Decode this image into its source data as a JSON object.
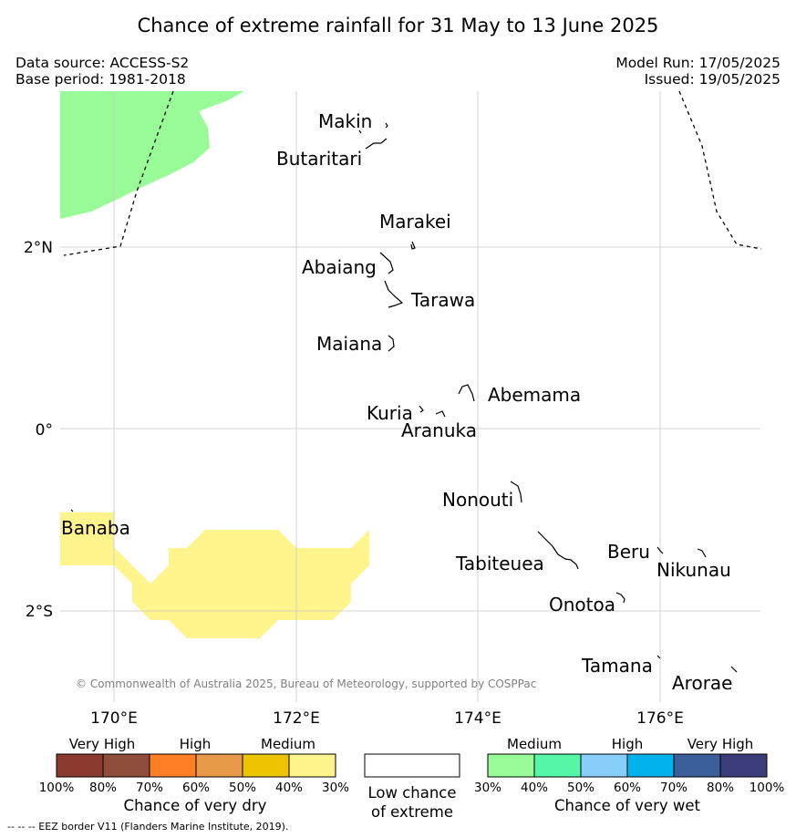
{
  "title": "Chance of extreme rainfall for 31 May to 13 June 2025",
  "data_source": "Data source: ACCESS-S2",
  "base_period": "Base period: 1981-2018",
  "model_run": "Model Run: 17/05/2025",
  "issued": "Issued: 19/05/2025",
  "copyright": "© Commonwealth of Australia 2025, Bureau of Meteorology, supported by COSPPac",
  "axes": {
    "lon_labels": [
      "170°E",
      "172°E",
      "174°E",
      "176°E"
    ],
    "lat_labels": [
      "2°N",
      "0°",
      "2°S"
    ]
  },
  "places": [
    {
      "name": "Makin",
      "lon": 172.99,
      "lat": 3.38
    },
    {
      "name": "Butaritari",
      "lon": 172.79,
      "lat": 3.07
    },
    {
      "name": "Marakei",
      "lon": 173.28,
      "lat": 2.0
    },
    {
      "name": "Abaiang",
      "lon": 173.03,
      "lat": 1.8
    },
    {
      "name": "Tarawa",
      "lon": 173.02,
      "lat": 1.42
    },
    {
      "name": "Maiana",
      "lon": 173.03,
      "lat": 0.92
    },
    {
      "name": "Abemama",
      "lon": 173.86,
      "lat": 0.4
    },
    {
      "name": "Kuria",
      "lon": 173.42,
      "lat": 0.22
    },
    {
      "name": "Aranuka",
      "lon": 173.62,
      "lat": 0.16
    },
    {
      "name": "Nonouti",
      "lon": 174.43,
      "lat": -0.67
    },
    {
      "name": "Banaba",
      "lon": 169.54,
      "lat": -0.87
    },
    {
      "name": "Tabiteuea",
      "lon": 174.85,
      "lat": -1.3
    },
    {
      "name": "Beru",
      "lon": 176.0,
      "lat": -1.33
    },
    {
      "name": "Nikunau",
      "lon": 176.45,
      "lat": -1.37
    },
    {
      "name": "Onotoa",
      "lon": 175.55,
      "lat": -1.82
    },
    {
      "name": "Tamana",
      "lon": 175.98,
      "lat": -2.5
    },
    {
      "name": "Arorae",
      "lon": 176.82,
      "lat": -2.63
    }
  ],
  "legend": {
    "dry": {
      "headers": [
        "Very High",
        "High",
        "Medium"
      ],
      "colors": [
        "#8c3a30",
        "#8f4d3b",
        "#ff7f27",
        "#e8994a",
        "#eec400",
        "#fff58c"
      ],
      "ticks": [
        "100%",
        "80%",
        "70%",
        "60%",
        "50%",
        "40%",
        "30%"
      ],
      "caption": "Chance of very dry"
    },
    "low": {
      "color": "#ffffff",
      "caption_line1": "Low chance",
      "caption_line2": "of extreme"
    },
    "wet": {
      "headers": [
        "Medium",
        "High",
        "Very High"
      ],
      "colors": [
        "#98fb98",
        "#55f7a6",
        "#87cefa",
        "#00b3ed",
        "#3a5f9a",
        "#3c3c7a"
      ],
      "ticks": [
        "30%",
        "40%",
        "50%",
        "60%",
        "70%",
        "80%",
        "100%"
      ],
      "caption": "Chance of very wet"
    }
  },
  "footnote": "-- -- -- EEZ border V11 (Flanders Marine Institute, 2019)."
}
